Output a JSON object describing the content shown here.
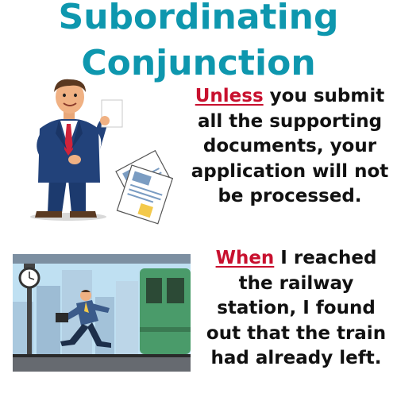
{
  "title": {
    "line1": "Subordinating",
    "line2": "Conjunction"
  },
  "example1": {
    "keyword": "Unless",
    "text": " you submit all the supporting documents, your application will not be processed."
  },
  "example2": {
    "keyword": "When",
    "text": " I reached the railway station, I found out that the train had already left."
  },
  "colors": {
    "title": "#0e97ae",
    "keyword": "#c8102e",
    "text": "#111111"
  }
}
